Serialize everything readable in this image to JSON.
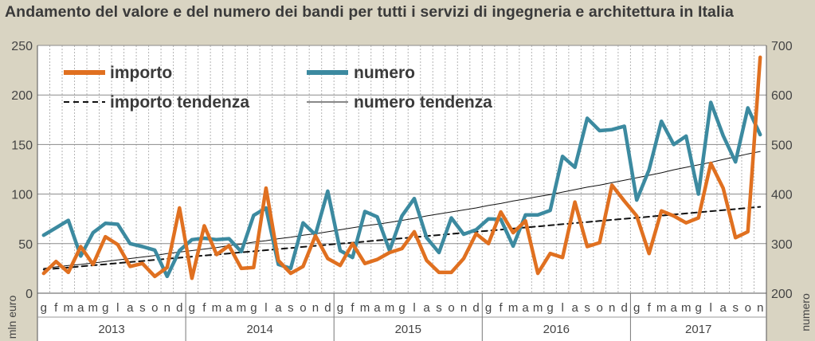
{
  "chart_data": {
    "type": "line",
    "title": "Andamento del valore e del numero dei bandi per tutti i servizi di ingegneria  e architettura  in Italia",
    "y_left": {
      "label": "mln euro",
      "range": [
        0,
        250
      ],
      "ticks": [
        "0",
        "50",
        "100",
        "150",
        "200",
        "250"
      ]
    },
    "y_right": {
      "label": "numero",
      "range": [
        200,
        700
      ],
      "ticks": [
        "200",
        "300",
        "400",
        "500",
        "600",
        "700"
      ]
    },
    "months": [
      "g",
      "f",
      "m",
      "a",
      "m",
      "g",
      "l",
      "a",
      "s",
      "o",
      "n",
      "d",
      "g",
      "f",
      "m",
      "a",
      "m",
      "g",
      "l",
      "a",
      "s",
      "o",
      "n",
      "d",
      "g",
      "f",
      "m",
      "a",
      "m",
      "g",
      "l",
      "a",
      "s",
      "o",
      "n",
      "d",
      "g",
      "f",
      "m",
      "a",
      "m",
      "g",
      "l",
      "a",
      "s",
      "o",
      "n",
      "d",
      "g",
      "f",
      "m",
      "a",
      "m",
      "g",
      "l",
      "a",
      "s",
      "o",
      "n"
    ],
    "years": [
      "2013",
      "2014",
      "2015",
      "2016",
      "2017"
    ],
    "grid": true,
    "legend_position": "top-left",
    "series": [
      {
        "name": "importo",
        "axis": "left",
        "color": "#e07020",
        "values": [
          20,
          32,
          21,
          47,
          29,
          57,
          49,
          27,
          30,
          17,
          26,
          86,
          15,
          68,
          39,
          48,
          25,
          26,
          106,
          33,
          20,
          27,
          58,
          35,
          28,
          50,
          30,
          34,
          41,
          45,
          62,
          33,
          21,
          21,
          35,
          60,
          50,
          82,
          61,
          73,
          20,
          40,
          36,
          92,
          47,
          51,
          109,
          93,
          78,
          40,
          83,
          78,
          71,
          76,
          131,
          106,
          56,
          62,
          238
        ]
      },
      {
        "name": "numero",
        "axis": "right",
        "color": "#3c8aa0",
        "values": [
          317,
          332,
          347,
          275,
          322,
          341,
          339,
          300,
          294,
          287,
          234,
          286,
          308,
          311,
          308,
          310,
          284,
          357,
          372,
          258,
          250,
          342,
          318,
          406,
          286,
          272,
          365,
          354,
          286,
          356,
          391,
          312,
          282,
          352,
          319,
          328,
          350,
          349,
          295,
          358,
          358,
          367,
          476,
          454,
          553,
          528,
          530,
          537,
          388,
          449,
          547,
          500,
          517,
          400,
          585,
          518,
          465,
          574,
          520
        ]
      },
      {
        "name": "importo tendenza",
        "axis": "left",
        "color": "#111111",
        "dash": true,
        "values": [
          23.8,
          24.9,
          25.9,
          27.0,
          28.1,
          29.2,
          30.3,
          31.4,
          32.5,
          33.6,
          34.7,
          35.8,
          36.9,
          38.0,
          39.0,
          40.1,
          41.2,
          42.3,
          43.4,
          44.5,
          45.6,
          46.7,
          47.8,
          48.9,
          50.0,
          51.0,
          52.1,
          53.2,
          54.3,
          55.4,
          56.5,
          57.6,
          58.7,
          59.8,
          60.9,
          62.0,
          63.0,
          64.1,
          65.2,
          66.3,
          67.4,
          68.5,
          69.6,
          70.7,
          71.8,
          72.9,
          74.0,
          75.0,
          76.1,
          77.2,
          78.3,
          79.4,
          80.5,
          81.6,
          82.7,
          83.8,
          84.9,
          86.0,
          87.1
        ]
      },
      {
        "name": "numero tendenza",
        "axis": "right",
        "color": "#111111",
        "values": [
          250,
          253,
          256,
          258,
          261,
          264,
          267,
          270,
          273,
          276,
          280,
          283,
          286,
          289,
          292,
          296,
          299,
          303,
          306,
          310,
          313,
          317,
          320,
          324,
          328,
          332,
          336,
          339,
          343,
          347,
          351,
          356,
          360,
          364,
          368,
          372,
          377,
          381,
          386,
          390,
          395,
          399,
          404,
          409,
          414,
          418,
          423,
          428,
          433,
          438,
          443,
          449,
          454,
          459,
          464,
          470,
          475,
          481,
          486
        ]
      }
    ]
  }
}
